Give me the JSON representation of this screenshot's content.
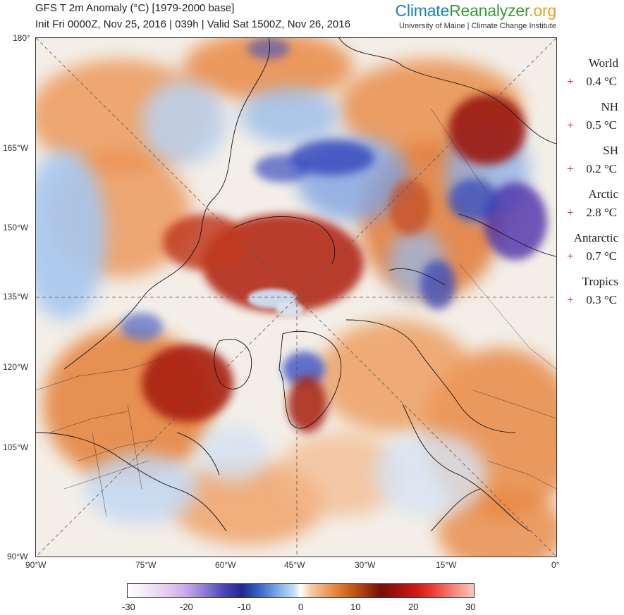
{
  "header": {
    "title_line1": "GFS T 2m Anomaly (°C) [1979-2000 base]",
    "title_line2": "Init Fri 0000Z, Nov 25, 2016 | 039h | Valid Sat 1500Z, Nov 26, 2016",
    "brand_part1": "Climate",
    "brand_part2": "Reanalyzer",
    "brand_part3": ".org",
    "brand_sub": "University of Maine | Climate Change Institute"
  },
  "axes": {
    "left_ticks": [
      "180°",
      "165°W",
      "150°W",
      "135°W",
      "120°W",
      "105°W",
      "90°W"
    ],
    "bottom_ticks": [
      "90°W",
      "75°W",
      "60°W",
      "45°W",
      "30°W",
      "15°W",
      "0°"
    ]
  },
  "stats": [
    {
      "name": "World",
      "sign": "+",
      "value": "0.4 °C"
    },
    {
      "name": "NH",
      "sign": "+",
      "value": "0.5 °C"
    },
    {
      "name": "SH",
      "sign": "+",
      "value": "0.2 °C"
    },
    {
      "name": "Arctic",
      "sign": "+",
      "value": "2.8 °C"
    },
    {
      "name": "Antarctic",
      "sign": "+",
      "value": "0.7 °C"
    },
    {
      "name": "Tropics",
      "sign": "+",
      "value": "0.3 °C"
    }
  ],
  "colorbar": {
    "labels": [
      "-30",
      "-20",
      "-10",
      "0",
      "10",
      "20",
      "30"
    ],
    "min": -30,
    "max": 30
  },
  "colors": {
    "cold_deep": "#4b2fa8",
    "cold": "#2b3fb8",
    "cool": "#8fb4ea",
    "neutral": "#f7f3ee",
    "warm": "#e7823a",
    "hot": "#a81c12"
  }
}
